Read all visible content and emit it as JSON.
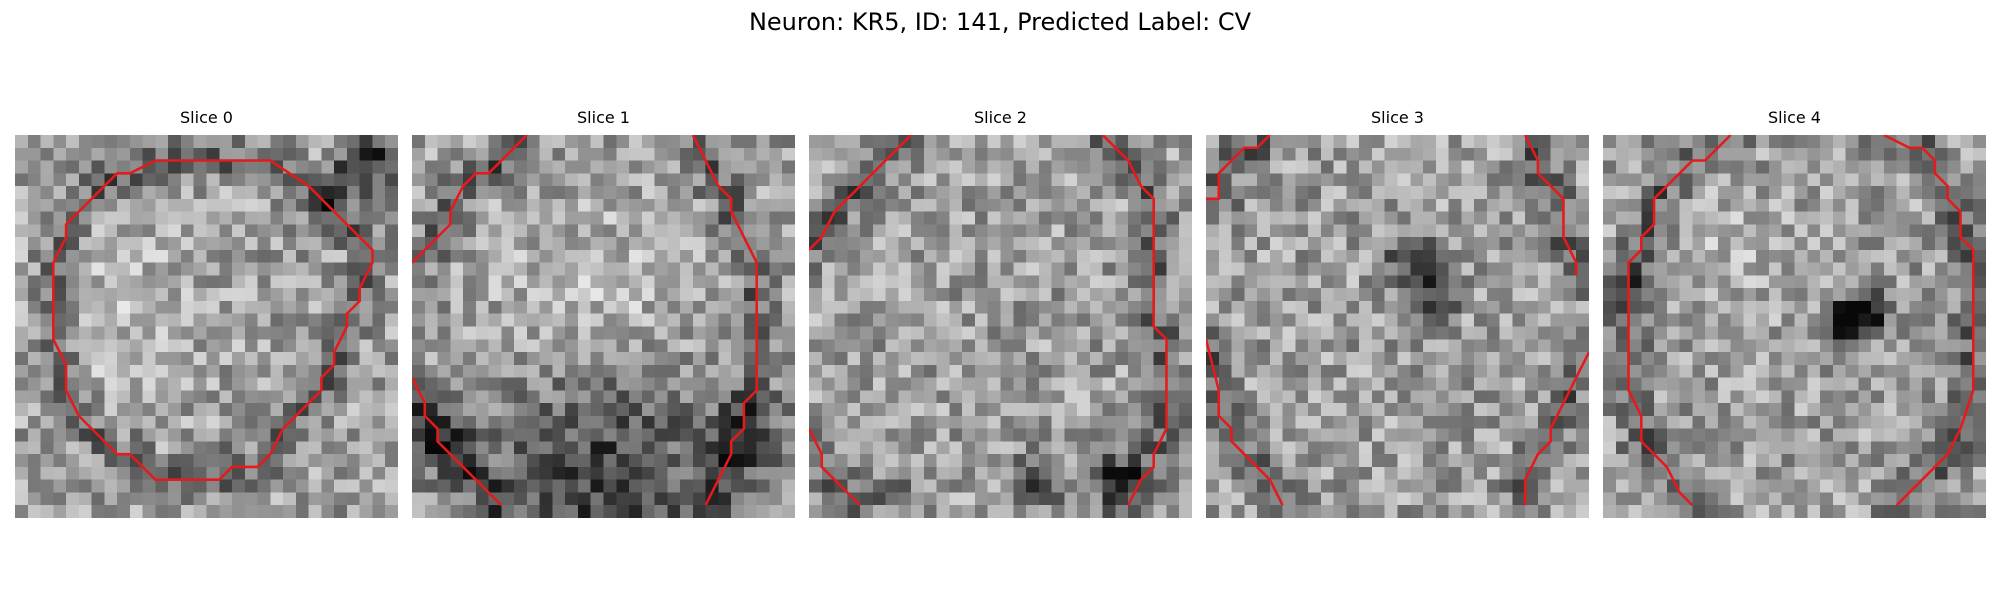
{
  "figure": {
    "title": "Neuron: KR5, ID: 141, Predicted Label: CV",
    "contour_color": "#e41a1c",
    "colormap": "gray",
    "grid_size": 30
  },
  "panels": [
    {
      "title": "Slice 0",
      "contour": [
        [
          [
            11,
            2
          ],
          [
            20,
            2
          ],
          [
            23,
            4
          ],
          [
            25,
            6
          ],
          [
            28,
            9
          ],
          [
            28,
            10
          ],
          [
            27,
            12
          ],
          [
            27,
            13
          ],
          [
            26,
            14
          ],
          [
            26,
            15
          ],
          [
            25,
            17
          ],
          [
            25,
            18
          ],
          [
            24,
            19
          ],
          [
            24,
            20
          ],
          [
            23,
            21
          ],
          [
            22,
            22
          ],
          [
            21,
            23
          ],
          [
            20,
            25
          ],
          [
            19,
            26
          ],
          [
            17,
            26
          ],
          [
            16,
            27
          ],
          [
            11,
            27
          ],
          [
            10,
            26
          ],
          [
            9,
            25
          ],
          [
            8,
            25
          ],
          [
            7,
            24
          ],
          [
            6,
            23
          ],
          [
            5,
            22
          ],
          [
            4,
            20
          ],
          [
            4,
            18
          ],
          [
            3,
            16
          ],
          [
            3,
            15
          ],
          [
            3,
            10
          ],
          [
            4,
            8
          ],
          [
            4,
            7
          ],
          [
            5,
            6
          ],
          [
            6,
            5
          ],
          [
            7,
            4
          ],
          [
            8,
            3
          ],
          [
            9,
            3
          ],
          [
            11,
            2
          ]
        ]
      ],
      "blobs": [
        [
          28,
          2,
          4,
          -0.45
        ],
        [
          25,
          4,
          3,
          -0.25
        ],
        [
          8,
          14,
          12,
          0.1
        ]
      ]
    },
    {
      "title": "Slice 1",
      "contour": [
        [
          [
            9,
            0
          ],
          [
            6,
            3
          ],
          [
            5,
            3
          ],
          [
            4,
            4
          ],
          [
            3,
            6
          ],
          [
            3,
            7
          ],
          [
            2,
            8
          ],
          [
            1,
            9
          ],
          [
            0,
            10
          ]
        ],
        [
          [
            22,
            0
          ],
          [
            23,
            2
          ],
          [
            24,
            4
          ],
          [
            25,
            5
          ],
          [
            25,
            6
          ],
          [
            26,
            8
          ],
          [
            27,
            10
          ],
          [
            27,
            15
          ],
          [
            27,
            20
          ],
          [
            26,
            21
          ],
          [
            26,
            22
          ],
          [
            26,
            23
          ],
          [
            25,
            24
          ],
          [
            25,
            25
          ],
          [
            24,
            27
          ],
          [
            23,
            29
          ]
        ],
        [
          [
            0,
            19
          ],
          [
            1,
            21
          ],
          [
            1,
            22
          ],
          [
            2,
            23
          ],
          [
            2,
            24
          ],
          [
            3,
            25
          ],
          [
            4,
            26
          ],
          [
            5,
            27
          ],
          [
            6,
            28
          ],
          [
            7,
            29
          ]
        ]
      ],
      "blobs": [
        [
          15,
          27,
          14,
          -0.4
        ],
        [
          2,
          24,
          5,
          -0.3
        ],
        [
          27,
          24,
          5,
          -0.3
        ],
        [
          14,
          13,
          11,
          0.12
        ]
      ]
    },
    {
      "title": "Slice 2",
      "contour": [
        [
          [
            8,
            0
          ],
          [
            6,
            2
          ],
          [
            4,
            4
          ],
          [
            2,
            6
          ],
          [
            1,
            8
          ],
          [
            0,
            9
          ]
        ],
        [
          [
            23,
            0
          ],
          [
            25,
            2
          ],
          [
            26,
            4
          ],
          [
            27,
            5
          ],
          [
            27,
            8
          ],
          [
            27,
            12
          ],
          [
            27,
            15
          ],
          [
            28,
            16
          ],
          [
            28,
            17
          ],
          [
            28,
            20
          ],
          [
            28,
            23
          ],
          [
            27,
            25
          ],
          [
            27,
            26
          ],
          [
            26,
            27
          ],
          [
            25,
            29
          ]
        ],
        [
          [
            0,
            23
          ],
          [
            1,
            25
          ],
          [
            1,
            26
          ],
          [
            2,
            27
          ],
          [
            3,
            28
          ],
          [
            4,
            29
          ]
        ]
      ],
      "blobs": [
        [
          24,
          27,
          3,
          -0.5
        ],
        [
          18,
          27,
          3,
          -0.4
        ],
        [
          7,
          28,
          2,
          -0.55
        ]
      ]
    },
    {
      "title": "Slice 3",
      "contour": [
        [
          [
            5,
            0
          ],
          [
            4,
            1
          ],
          [
            3,
            1
          ],
          [
            2,
            2
          ],
          [
            1,
            3
          ],
          [
            1,
            4
          ],
          [
            1,
            5
          ],
          [
            0,
            5
          ]
        ],
        [
          [
            25,
            0
          ],
          [
            26,
            2
          ],
          [
            26,
            3
          ],
          [
            27,
            4
          ],
          [
            28,
            5
          ],
          [
            28,
            8
          ],
          [
            29,
            10
          ],
          [
            29,
            11
          ]
        ],
        [
          [
            0,
            16
          ],
          [
            1,
            20
          ],
          [
            1,
            22
          ],
          [
            2,
            23
          ],
          [
            2,
            24
          ],
          [
            3,
            25
          ],
          [
            4,
            26
          ],
          [
            5,
            27
          ],
          [
            6,
            29
          ]
        ],
        [
          [
            30,
            17
          ],
          [
            29,
            19
          ],
          [
            28,
            21
          ],
          [
            27,
            23
          ],
          [
            27,
            24
          ],
          [
            26,
            25
          ],
          [
            25,
            27
          ],
          [
            25,
            29
          ]
        ]
      ],
      "blobs": [
        [
          18,
          13,
          3,
          -0.5
        ],
        [
          17,
          10,
          3,
          -0.3
        ],
        [
          15,
          10,
          2,
          -0.25
        ]
      ]
    },
    {
      "title": "Slice 4",
      "contour": [
        [
          [
            10,
            0
          ],
          [
            9,
            1
          ],
          [
            8,
            2
          ],
          [
            7,
            2
          ],
          [
            6,
            3
          ],
          [
            5,
            4
          ],
          [
            4,
            5
          ],
          [
            4,
            7
          ],
          [
            3,
            8
          ],
          [
            3,
            9
          ],
          [
            2,
            10
          ],
          [
            2,
            11
          ],
          [
            2,
            20
          ],
          [
            3,
            22
          ],
          [
            3,
            24
          ],
          [
            4,
            25
          ],
          [
            5,
            26
          ],
          [
            6,
            28
          ],
          [
            7,
            29
          ]
        ],
        [
          [
            22,
            0
          ],
          [
            24,
            1
          ],
          [
            25,
            1
          ],
          [
            26,
            2
          ],
          [
            26,
            3
          ],
          [
            27,
            4
          ],
          [
            27,
            5
          ],
          [
            28,
            6
          ],
          [
            28,
            8
          ],
          [
            29,
            9
          ],
          [
            29,
            10
          ],
          [
            29,
            14
          ],
          [
            29,
            20
          ],
          [
            28,
            23
          ],
          [
            27,
            25
          ],
          [
            26,
            26
          ],
          [
            25,
            27
          ],
          [
            24,
            28
          ],
          [
            23,
            29
          ]
        ]
      ],
      "blobs": [
        [
          19,
          15,
          3,
          -0.65
        ],
        [
          21,
          14,
          3,
          -0.35
        ],
        [
          1,
          12,
          3,
          -0.3
        ],
        [
          10,
          10,
          7,
          0.1
        ]
      ]
    }
  ]
}
